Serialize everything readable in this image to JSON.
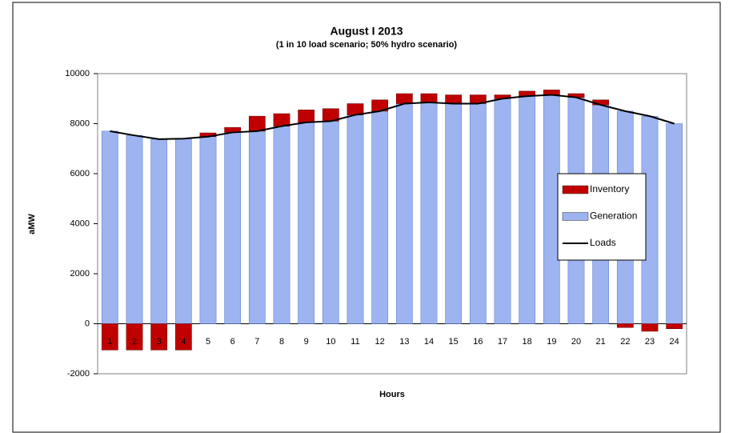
{
  "chart_data": {
    "type": "bar",
    "title": "August I 2013",
    "subtitle": "(1 in 10 load scenario; 50% hydro scenario)",
    "x_label": "Hours",
    "y_label": "aMW",
    "categories": [
      "1",
      "2",
      "3",
      "4",
      "5",
      "6",
      "7",
      "8",
      "9",
      "10",
      "11",
      "12",
      "13",
      "14",
      "15",
      "16",
      "17",
      "18",
      "19",
      "20",
      "21",
      "22",
      "23",
      "24"
    ],
    "series": [
      {
        "name": "Inventory",
        "type": "bar",
        "color": "#c00000",
        "values": [
          -1050,
          -1050,
          -1050,
          -1050,
          150,
          200,
          600,
          500,
          500,
          500,
          450,
          450,
          400,
          350,
          350,
          350,
          150,
          200,
          200,
          150,
          200,
          -150,
          -300,
          -200
        ]
      },
      {
        "name": "Generation",
        "type": "bar",
        "color": "#9db4f0",
        "values": [
          7700,
          7530,
          7380,
          7400,
          7480,
          7650,
          7700,
          7900,
          8050,
          8100,
          8350,
          8500,
          8800,
          8850,
          8800,
          8800,
          9000,
          9100,
          9150,
          9050,
          8750,
          8500,
          8300,
          8000
        ]
      },
      {
        "name": "Loads",
        "type": "line",
        "color": "#000000",
        "values": [
          7700,
          7530,
          7380,
          7400,
          7480,
          7650,
          7700,
          7900,
          8050,
          8100,
          8350,
          8500,
          8800,
          8850,
          8800,
          8800,
          9000,
          9100,
          9150,
          9050,
          8750,
          8500,
          8300,
          8000
        ]
      }
    ],
    "ylim": [
      -2000,
      10000
    ],
    "yticks": [
      -2000,
      0,
      2000,
      4000,
      6000,
      8000,
      10000
    ],
    "grid": false,
    "legend": "right"
  }
}
